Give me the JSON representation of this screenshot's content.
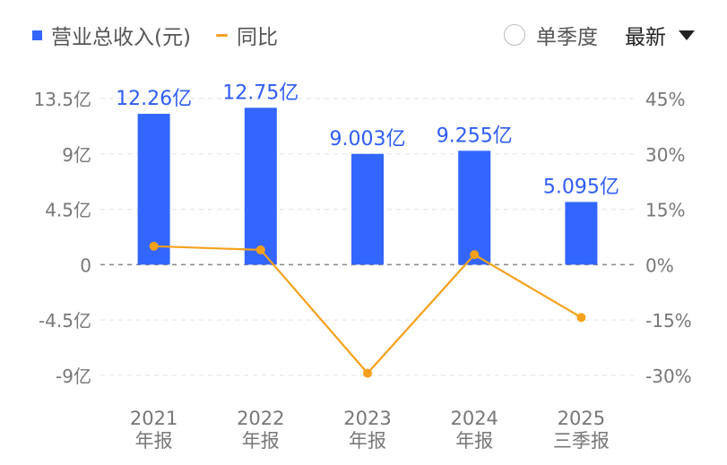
{
  "legend": {
    "bar_label": "营业总收入(元)",
    "line_label": "同比"
  },
  "controls": {
    "quarter_toggle": "单季度",
    "period_select": "最新"
  },
  "colors": {
    "bar": "#3366ff",
    "line": "#f5a11c",
    "grid": "#e6e6e6",
    "zero": "#888888",
    "tick": "#777777",
    "bar_label": "#2f5cf5"
  },
  "chart_data": {
    "type": "bar",
    "categories": [
      [
        "2021",
        "年报"
      ],
      [
        "2022",
        "年报"
      ],
      [
        "2023",
        "年报"
      ],
      [
        "2024",
        "年报"
      ],
      [
        "2025",
        "三季报"
      ]
    ],
    "series": [
      {
        "name": "营业总收入(元)",
        "type": "bar",
        "axis": "left",
        "values": [
          12.26,
          12.75,
          9.003,
          9.255,
          5.095
        ],
        "labels": [
          "12.26亿",
          "12.75亿",
          "9.003亿",
          "9.255亿",
          "5.095亿"
        ]
      },
      {
        "name": "同比",
        "type": "line",
        "axis": "right",
        "values": [
          5.0,
          4.0,
          -29.4,
          2.7,
          -14.3
        ]
      }
    ],
    "y_left": {
      "ticks": [
        13.5,
        9,
        4.5,
        0,
        -4.5,
        -9
      ],
      "labels": [
        "13.5亿",
        "9亿",
        "4.5亿",
        "0",
        "-4.5亿",
        "-9亿"
      ],
      "range": [
        -9,
        13.5
      ]
    },
    "y_right": {
      "ticks": [
        45,
        30,
        15,
        0,
        -15,
        -30
      ],
      "labels": [
        "45%",
        "30%",
        "15%",
        "0%",
        "-15%",
        "-30%"
      ],
      "range": [
        -30,
        45
      ]
    },
    "grid": true
  }
}
